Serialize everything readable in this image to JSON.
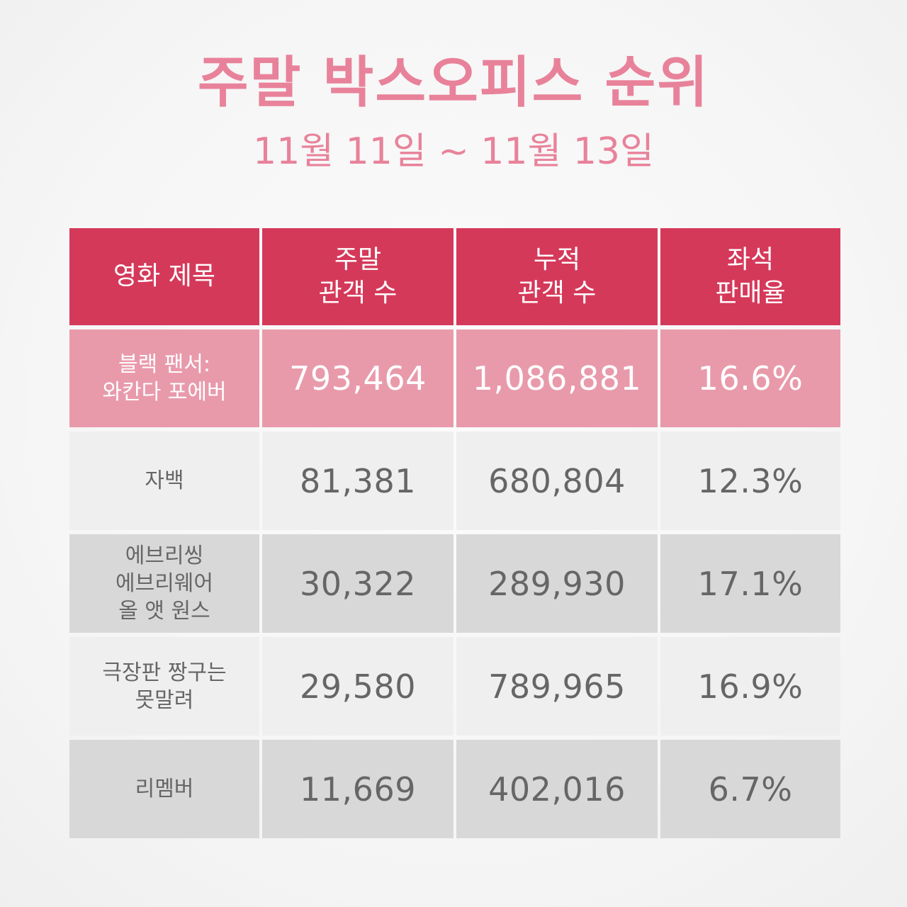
{
  "title": "주말 박스오피스 순위",
  "subtitle": "11월 11일 ~ 11월 13일",
  "colors": {
    "title": "#e8829a",
    "header_bg": "#d5395a",
    "highlight_row_bg": "#e89aab",
    "light_row_bg": "#efefef",
    "dark_row_bg": "#d8d8d8",
    "body_text": "#666666"
  },
  "chart_data": {
    "type": "table",
    "columns": [
      [
        "영화 제목"
      ],
      [
        "주말",
        "관객 수"
      ],
      [
        "누적",
        "관객 수"
      ],
      [
        "좌석",
        "판매율"
      ]
    ],
    "rows": [
      {
        "title_lines": [
          "블랙 팬서:",
          "와칸다 포에버"
        ],
        "weekend": "793,464",
        "cumulative": "1,086,881",
        "seat_rate": "16.6%"
      },
      {
        "title_lines": [
          "자백"
        ],
        "weekend": "81,381",
        "cumulative": "680,804",
        "seat_rate": "12.3%"
      },
      {
        "title_lines": [
          "에브리씽",
          "에브리웨어",
          "올 앳 원스"
        ],
        "weekend": "30,322",
        "cumulative": "289,930",
        "seat_rate": "17.1%"
      },
      {
        "title_lines": [
          "극장판 짱구는",
          "못말려"
        ],
        "weekend": "29,580",
        "cumulative": "789,965",
        "seat_rate": "16.9%"
      },
      {
        "title_lines": [
          "리멤버"
        ],
        "weekend": "11,669",
        "cumulative": "402,016",
        "seat_rate": "6.7%"
      }
    ]
  }
}
